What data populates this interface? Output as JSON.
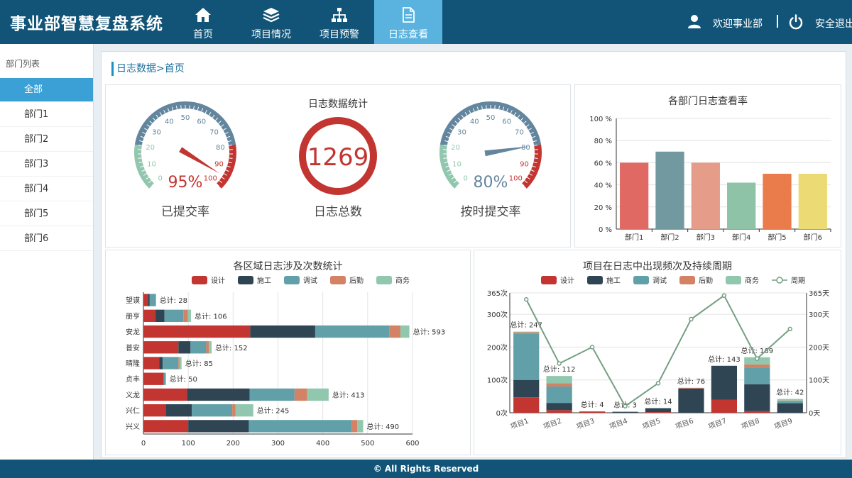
{
  "brand": "事业部智慧复盘系统",
  "nav": [
    {
      "label": "首页",
      "icon": "home-icon"
    },
    {
      "label": "项目情况",
      "icon": "layers-icon"
    },
    {
      "label": "项目预警",
      "icon": "sitemap-icon"
    },
    {
      "label": "日志查看",
      "icon": "document-icon",
      "active": true
    }
  ],
  "user": {
    "welcome": "欢迎事业部",
    "logout": "安全退出"
  },
  "sidebar": {
    "title": "部门列表",
    "items": [
      "全部",
      "部门1",
      "部门2",
      "部门3",
      "部门4",
      "部门5",
      "部门6"
    ],
    "active_index": 0
  },
  "breadcrumb": "日志数据>首页",
  "stats": {
    "title": "日志数据统计",
    "gauge1": {
      "value": 95,
      "display": "95%",
      "label": "已提交率"
    },
    "total": {
      "value": "1269",
      "label": "日志总数"
    },
    "gauge2": {
      "value": 80,
      "display": "80%",
      "label": "按时提交率"
    }
  },
  "legend5": [
    "设计",
    "施工",
    "调试",
    "后勤",
    "商务"
  ],
  "colors": {
    "design": "#c23531",
    "construct": "#2f4554",
    "debug": "#61a0a8",
    "logistics": "#d48265",
    "business": "#91c7ae",
    "accent": "#1b8fc7",
    "header": "#115478"
  },
  "footer": "© All Rights Reserved",
  "chart_data": [
    {
      "type": "bar",
      "title": "各部门日志查看率",
      "categories": [
        "部门1",
        "部门2",
        "部门3",
        "部门4",
        "部门5",
        "部门6"
      ],
      "values": [
        60,
        70,
        60,
        42,
        50,
        50
      ],
      "bar_colors": [
        "#e06963",
        "#7399a0",
        "#e59c88",
        "#8ec3a8",
        "#ea7c4c",
        "#ecdb74"
      ],
      "ylim": [
        0,
        100
      ],
      "yticks": [
        "0 %",
        "20 %",
        "40 %",
        "60 %",
        "80 %",
        "100 %"
      ]
    },
    {
      "type": "bar",
      "orientation": "horizontal-stacked",
      "title": "各区域日志涉及次数统计",
      "categories": [
        "兴义",
        "兴仁",
        "义龙",
        "贞丰",
        "晴隆",
        "普安",
        "安龙",
        "册亨",
        "望谟"
      ],
      "series": [
        {
          "name": "设计",
          "values": [
            100,
            50,
            97,
            45,
            35,
            78,
            238,
            27,
            10
          ]
        },
        {
          "name": "施工",
          "values": [
            135,
            58,
            140,
            0,
            8,
            27,
            145,
            20,
            4
          ]
        },
        {
          "name": "调试",
          "values": [
            230,
            90,
            100,
            5,
            35,
            35,
            165,
            42,
            14
          ]
        },
        {
          "name": "后勤",
          "values": [
            12,
            7,
            28,
            0,
            2,
            6,
            25,
            10,
            0
          ]
        },
        {
          "name": "商务",
          "values": [
            13,
            40,
            48,
            0,
            5,
            6,
            20,
            7,
            0
          ]
        }
      ],
      "totals": [
        "总计: 490",
        "总计: 245",
        "总计: 413",
        "总计: 50",
        "总计: 85",
        "总计: 152",
        "总计: 593",
        "总计: 106",
        "总计: 28"
      ],
      "xlim": [
        0,
        600
      ],
      "xticks": [
        "0",
        "100",
        "200",
        "300",
        "400",
        "500",
        "600"
      ]
    },
    {
      "type": "bar",
      "subtype": "stacked-with-line",
      "title": "项目在日志中出现频次及持续周期",
      "categories": [
        "项目1",
        "项目2",
        "项目3",
        "项目4",
        "项目5",
        "项目6",
        "项目7",
        "项目8",
        "项目9"
      ],
      "series": [
        {
          "name": "设计",
          "values": [
            47,
            8,
            3,
            0,
            2,
            0,
            40,
            5,
            0
          ]
        },
        {
          "name": "施工",
          "values": [
            53,
            22,
            1,
            3,
            12,
            74,
            103,
            82,
            29
          ]
        },
        {
          "name": "调试",
          "values": [
            140,
            50,
            0,
            0,
            0,
            0,
            0,
            50,
            6
          ]
        },
        {
          "name": "后勤",
          "values": [
            5,
            10,
            0,
            0,
            0,
            2,
            0,
            10,
            2
          ]
        },
        {
          "name": "商务",
          "values": [
            2,
            22,
            0,
            0,
            0,
            0,
            0,
            22,
            5
          ]
        }
      ],
      "line": {
        "name": "周期",
        "values": [
          345,
          150,
          200,
          20,
          90,
          285,
          357,
          165,
          255
        ]
      },
      "totals": [
        "总计: 247",
        "总计: 112",
        "总计: 4",
        "总计: 3",
        "总计: 14",
        "总计: 76",
        "总计: 143",
        "总计: 169",
        "总计: 42"
      ],
      "ylim": [
        0,
        365
      ],
      "yticks_left": [
        "0次",
        "100次",
        "200次",
        "300次",
        "365次"
      ],
      "yticks_right": [
        "0天",
        "100天",
        "200天",
        "300天",
        "365天"
      ]
    }
  ]
}
